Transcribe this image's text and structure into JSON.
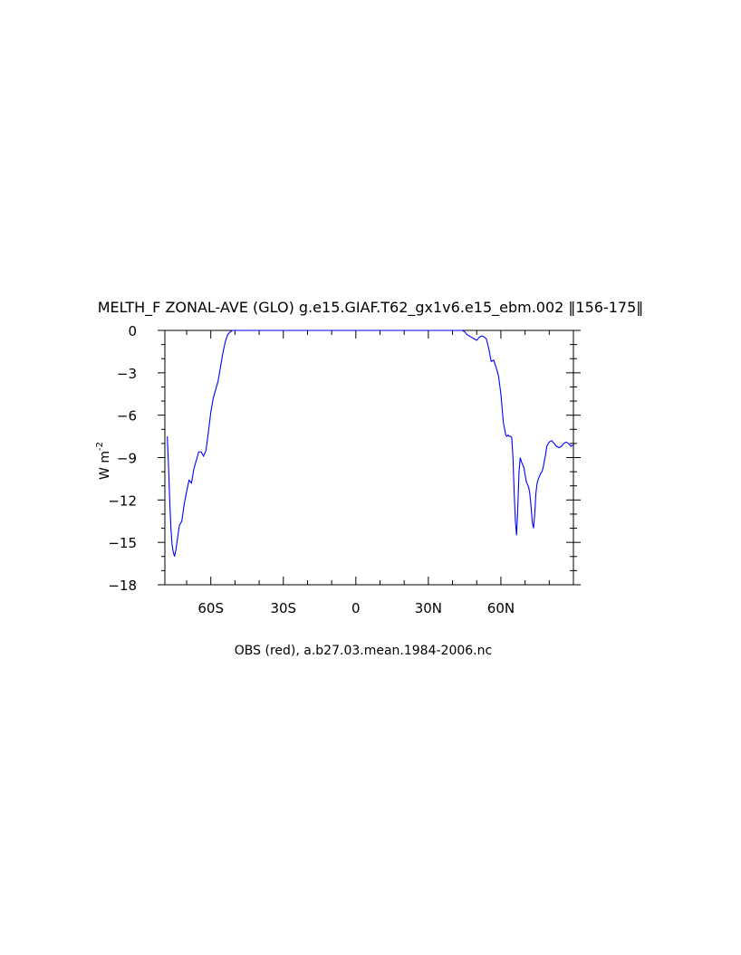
{
  "chart_data": {
    "type": "line",
    "title": "MELTH_F ZONAL-AVE (GLO) g.e15.GIAF.T62_gx1v6.e15_ebm.002 ‖156-175‖",
    "subtitle": "OBS (red), a.b27.03.mean.1984-2006.nc",
    "xlabel": "",
    "ylabel": "W m",
    "ylabel_superscript": "-2",
    "xlim": [
      -79,
      90
    ],
    "ylim": [
      -18,
      0
    ],
    "x_ticks": [
      -60,
      -30,
      0,
      30,
      60
    ],
    "x_tick_labels": [
      "60S",
      "30S",
      "0",
      "30N",
      "60N"
    ],
    "y_ticks": [
      0,
      -3,
      -6,
      -9,
      -12,
      -15,
      -18
    ],
    "y_tick_labels": [
      "0",
      "−3",
      "−6",
      "−9",
      "−12",
      "−15",
      "−18"
    ],
    "grid": false,
    "series": [
      {
        "color": "#0000ff",
        "x": [
          -78,
          -77.5,
          -77,
          -76.5,
          -76,
          -75.5,
          -75,
          -74.5,
          -74,
          -73,
          -72,
          -71,
          -70,
          -69,
          -68,
          -67,
          -66,
          -65,
          -64,
          -63,
          -62,
          -61,
          -60,
          -59,
          -58,
          -57,
          -56,
          -55,
          -54,
          -53,
          -52,
          -51,
          -50,
          -48,
          -46,
          -44,
          -40,
          -30,
          -20,
          -10,
          0,
          10,
          20,
          30,
          40,
          44,
          45,
          46,
          47,
          48,
          49,
          50,
          51,
          52,
          53,
          54,
          55,
          56,
          57,
          58,
          59,
          60,
          61,
          62,
          62.5,
          63,
          63.5,
          64,
          64.5,
          65,
          65.5,
          66,
          66.5,
          67,
          67.5,
          68,
          68.5,
          69,
          69.5,
          70,
          70.5,
          71,
          71.5,
          72,
          72.5,
          73,
          73.5,
          74,
          74.5,
          75,
          75.5,
          76,
          76.5,
          77,
          77.5,
          78,
          78.5,
          79,
          80,
          81,
          82,
          83,
          84,
          85,
          86,
          87,
          88,
          89,
          90
        ],
        "y": [
          -7.5,
          -9.5,
          -12,
          -14,
          -15.2,
          -15.7,
          -16,
          -15.6,
          -15,
          -13.8,
          -13.5,
          -12.3,
          -11.4,
          -10.6,
          -10.8,
          -9.8,
          -9.2,
          -8.6,
          -8.6,
          -8.9,
          -8.5,
          -7.2,
          -5.8,
          -4.8,
          -4.2,
          -3.6,
          -2.6,
          -1.6,
          -0.8,
          -0.3,
          -0.1,
          0,
          0,
          0,
          0,
          0,
          0,
          0,
          0,
          0,
          0,
          0,
          0,
          0,
          0,
          0,
          -0.1,
          -0.3,
          -0.4,
          -0.5,
          -0.6,
          -0.7,
          -0.5,
          -0.4,
          -0.45,
          -0.6,
          -1.3,
          -2.2,
          -2.1,
          -2.6,
          -3.2,
          -4.5,
          -6.5,
          -7.4,
          -7.5,
          -7.4,
          -7.5,
          -7.5,
          -7.6,
          -9,
          -11.5,
          -13.5,
          -14.5,
          -12.5,
          -10,
          -9,
          -9.3,
          -9.5,
          -9.7,
          -10.2,
          -10.7,
          -10.9,
          -11.1,
          -11.6,
          -12.5,
          -13.6,
          -14,
          -13,
          -11.5,
          -10.8,
          -10.5,
          -10.3,
          -10.1,
          -10.0,
          -9.7,
          -9.2,
          -8.8,
          -8.2,
          -7.9,
          -7.8,
          -8.0,
          -8.2,
          -8.3,
          -8.2,
          -8.0,
          -7.9,
          -8.0,
          -8.2,
          -8.1
        ]
      }
    ]
  }
}
